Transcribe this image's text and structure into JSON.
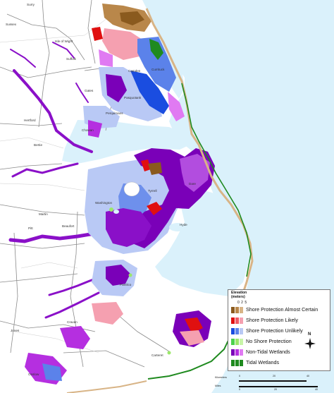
{
  "map": {
    "colors": {
      "water": "#daf1fb",
      "land": "#ffffff",
      "boundary": "#8a8a8a",
      "road": "#c9c9c9",
      "tidal": "#1f8a1f",
      "nontidal_dark": "#7a00b8",
      "nontidal_light": "#e07af2",
      "unlikely_dark": "#1a4de0",
      "unlikely_light": "#b9c9f5",
      "likely_dark": "#e01010",
      "likely_light": "#f5a0b0",
      "certain_dark": "#8a5a1e",
      "certain_light": "#d8b486",
      "noprotect": "#9be86a"
    },
    "counties": [
      {
        "name": "Surry"
      },
      {
        "name": "Sussex"
      },
      {
        "name": "Isle of Wight"
      },
      {
        "name": "Suffolk"
      },
      {
        "name": "Hertford"
      },
      {
        "name": "Bertie"
      },
      {
        "name": "Martin"
      },
      {
        "name": "Pitt"
      },
      {
        "name": "Beaufort"
      },
      {
        "name": "Washington"
      },
      {
        "name": "Tyrrell"
      },
      {
        "name": "Dare"
      },
      {
        "name": "Hyde"
      },
      {
        "name": "Chowan"
      },
      {
        "name": "Perquimans"
      },
      {
        "name": "Pasquotank"
      },
      {
        "name": "Camden"
      },
      {
        "name": "Currituck"
      },
      {
        "name": "Gates"
      },
      {
        "name": "Pamlico"
      },
      {
        "name": "Craven"
      },
      {
        "name": "Carteret"
      },
      {
        "name": "Jones"
      },
      {
        "name": "Onslow"
      }
    ]
  },
  "legend": {
    "title_line1": "Elevation",
    "title_line2": "(meters)",
    "scale_ticks": "0  2  5",
    "items": [
      {
        "label": "Shore Protection Almost Certain",
        "colors": [
          "#8a5a1e",
          "#b9874a",
          "#d8b486"
        ]
      },
      {
        "label": "Shore Protection Likely",
        "colors": [
          "#e01010",
          "#ef5a66",
          "#f5a0b0"
        ]
      },
      {
        "label": "Shore Protection Unlikely",
        "colors": [
          "#1a4de0",
          "#5b82ea",
          "#b9c9f5"
        ]
      },
      {
        "label": "No Shore Protection",
        "colors": [
          "#4cd24c",
          "#9be86a",
          "#c8f5a8"
        ]
      },
      {
        "label": "Non-Tidal Wetlands",
        "colors": [
          "#7a00b8",
          "#b52fe0",
          "#e07af2"
        ]
      },
      {
        "label": "Tidal Wetlands",
        "colors": [
          "#1f8a1f",
          "#1f8a1f",
          "#1f8a1f"
        ]
      }
    ]
  },
  "north_arrow": {
    "label": "N"
  },
  "scale": {
    "km_label": "Kilometers",
    "km_ticks": [
      "0",
      "20",
      "40"
    ],
    "mi_label": "Miles",
    "mi_ticks": [
      "0",
      "20",
      "40"
    ]
  }
}
